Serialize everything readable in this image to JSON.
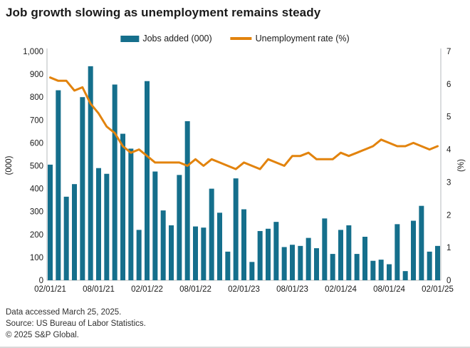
{
  "title": "Job growth slowing as unemployment remains steady",
  "legend": [
    {
      "label": "Jobs added (000)",
      "swatch": "bar",
      "color": "#156f8c"
    },
    {
      "label": "Unemployment rate (%)",
      "swatch": "line",
      "color": "#e2830d"
    }
  ],
  "footer": {
    "line1": "Data accessed March 25, 2025.",
    "line2": "Source: US Bureau of Labor Statistics.",
    "line3": "© 2025 S&P Global."
  },
  "colors": {
    "bar": "#156f8c",
    "line": "#e2830d",
    "axis_line": "#c6c9cb",
    "text": "#1a1a1a"
  },
  "chart_data": {
    "type": "bar+line",
    "title": "Job growth slowing as unemployment remains steady",
    "grid": false,
    "legend_position": "top",
    "x": [
      "02/01/21",
      "03/01/21",
      "04/01/21",
      "05/01/21",
      "06/01/21",
      "07/01/21",
      "08/01/21",
      "09/01/21",
      "10/01/21",
      "11/01/21",
      "12/01/21",
      "01/01/22",
      "02/01/22",
      "03/01/22",
      "04/01/22",
      "05/01/22",
      "06/01/22",
      "07/01/22",
      "08/01/22",
      "09/01/22",
      "10/01/22",
      "11/01/22",
      "12/01/22",
      "01/01/23",
      "02/01/23",
      "03/01/23",
      "04/01/23",
      "05/01/23",
      "06/01/23",
      "07/01/23",
      "08/01/23",
      "09/01/23",
      "10/01/23",
      "11/01/23",
      "12/01/23",
      "01/01/24",
      "02/01/24",
      "03/01/24",
      "04/01/24",
      "05/01/24",
      "06/01/24",
      "07/01/24",
      "08/01/24",
      "09/01/24",
      "10/01/24",
      "11/01/24",
      "12/01/24",
      "01/01/25",
      "02/01/25"
    ],
    "x_tick_indices": [
      0,
      6,
      12,
      18,
      24,
      30,
      36,
      42,
      48
    ],
    "series": [
      {
        "name": "Jobs added (000)",
        "type": "bar",
        "axis": "left",
        "color": "#156f8c",
        "values": [
          505,
          830,
          365,
          420,
          800,
          935,
          490,
          465,
          855,
          640,
          575,
          220,
          870,
          475,
          305,
          240,
          460,
          695,
          235,
          230,
          400,
          295,
          125,
          445,
          310,
          80,
          215,
          225,
          255,
          145,
          155,
          150,
          185,
          140,
          270,
          115,
          220,
          240,
          115,
          190,
          85,
          90,
          70,
          245,
          40,
          260,
          325,
          125,
          150
        ]
      },
      {
        "name": "Unemployment rate (%)",
        "type": "line",
        "axis": "right",
        "color": "#e2830d",
        "values": [
          6.2,
          6.1,
          6.1,
          5.8,
          5.9,
          5.4,
          5.1,
          4.7,
          4.5,
          4.1,
          3.9,
          4.0,
          3.8,
          3.6,
          3.6,
          3.6,
          3.6,
          3.5,
          3.7,
          3.5,
          3.7,
          3.6,
          3.5,
          3.4,
          3.6,
          3.5,
          3.4,
          3.7,
          3.6,
          3.5,
          3.8,
          3.8,
          3.9,
          3.7,
          3.7,
          3.7,
          3.9,
          3.8,
          3.9,
          4.0,
          4.1,
          4.3,
          4.2,
          4.1,
          4.1,
          4.2,
          4.1,
          4.0,
          4.1
        ]
      }
    ],
    "left_axis": {
      "label": "(000)",
      "min": 0,
      "max": 1000,
      "ticks": [
        "0",
        "100",
        "200",
        "300",
        "400",
        "500",
        "600",
        "700",
        "800",
        "900",
        "1,000"
      ]
    },
    "right_axis": {
      "label": "(%)",
      "min": 0,
      "max": 7,
      "ticks": [
        "0",
        "1",
        "2",
        "3",
        "4",
        "5",
        "6",
        "7"
      ]
    }
  }
}
